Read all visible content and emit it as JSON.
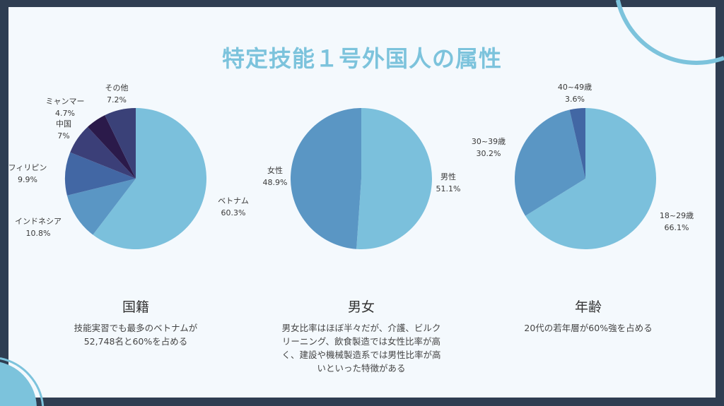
{
  "title": "特定技能１号外国人の属性",
  "colors": {
    "frame": "#2f3e52",
    "background": "#f4f9fd",
    "accent": "#7cc3dc"
  },
  "chart_data": [
    {
      "type": "pie",
      "title": "国籍",
      "description": "技能実習でも最多のベトナムが52,748名と60%を占める",
      "slices": [
        {
          "label": "ベトナム",
          "value": 60.3,
          "display": "60.3%",
          "color": "#7bc0dc"
        },
        {
          "label": "インドネシア",
          "value": 10.8,
          "display": "10.8%",
          "color": "#5a96c4"
        },
        {
          "label": "フィリピン",
          "value": 9.9,
          "display": "9.9%",
          "color": "#4267a4"
        },
        {
          "label": "中国",
          "value": 7,
          "display": "7%",
          "color": "#3b3f78"
        },
        {
          "label": "ミャンマー",
          "value": 4.7,
          "display": "4.7%",
          "color": "#2b1a4a"
        },
        {
          "label": "その他",
          "value": 7.2,
          "display": "7.2%",
          "color": "#3a4178"
        }
      ]
    },
    {
      "type": "pie",
      "title": "男女",
      "description": "男女比率はほぼ半々だが、介護、ビルクリーニング、飲食製造では女性比率が高く、建設や機械製造系では男性比率が高いといった特徴がある",
      "slices": [
        {
          "label": "男性",
          "value": 51.1,
          "display": "51.1%",
          "color": "#7bc0dc"
        },
        {
          "label": "女性",
          "value": 48.9,
          "display": "48.9%",
          "color": "#5a96c4"
        }
      ]
    },
    {
      "type": "pie",
      "title": "年齢",
      "description": "20代の若年層が60%強を占める",
      "slices": [
        {
          "label": "18~29歳",
          "value": 66.1,
          "display": "66.1%",
          "color": "#7bc0dc"
        },
        {
          "label": "30~39歳",
          "value": 30.2,
          "display": "30.2%",
          "color": "#5a96c4"
        },
        {
          "label": "40~49歳",
          "value": 3.6,
          "display": "3.6%",
          "color": "#4267a4"
        }
      ]
    }
  ]
}
